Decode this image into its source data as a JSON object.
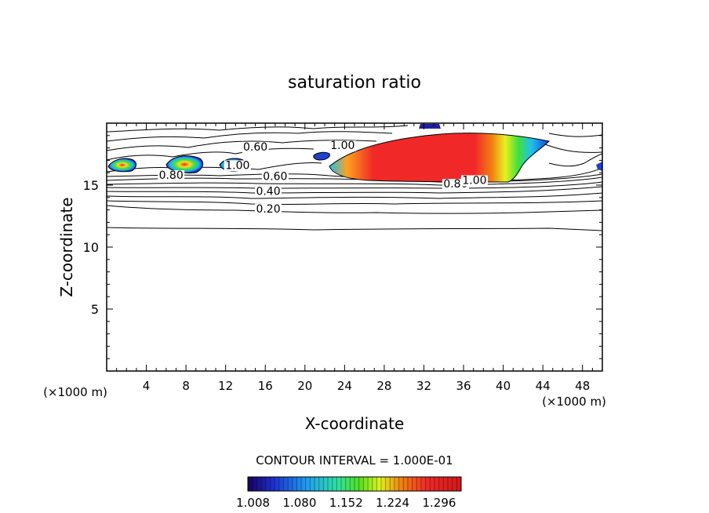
{
  "chart_data": {
    "type": "contour",
    "title": "saturation ratio",
    "xlabel": "X-coordinate",
    "ylabel": "Z-coordinate",
    "x_unit_label": "(×1000 m)",
    "y_unit_label": "(×1000 m)",
    "xlim": [
      0,
      50
    ],
    "ylim": [
      0,
      20
    ],
    "x_ticks": [
      4,
      8,
      12,
      16,
      20,
      24,
      28,
      32,
      36,
      40,
      44,
      48
    ],
    "x_tick_labels": [
      "4",
      "8",
      "12",
      "16",
      "20",
      "24",
      "28",
      "32",
      "36",
      "40",
      "44",
      "48"
    ],
    "y_ticks": [
      5,
      10,
      15
    ],
    "y_tick_labels": [
      "5",
      "10",
      "15"
    ],
    "contour_interval_text": "CONTOUR INTERVAL = 1.000E-01",
    "contour_levels": [
      0.1,
      0.2,
      0.3,
      0.4,
      0.5,
      0.6,
      0.7,
      0.8,
      0.9,
      1.0
    ],
    "contour_labels": [
      {
        "text": "0.20",
        "x": 16.3,
        "z": 12.8
      },
      {
        "text": "0.40",
        "x": 16.3,
        "z": 14.2
      },
      {
        "text": "0.60",
        "x": 17.0,
        "z": 15.4
      },
      {
        "text": "0.80",
        "x": 6.5,
        "z": 15.5
      },
      {
        "text": "1.00",
        "x": 13.2,
        "z": 16.3
      },
      {
        "text": "0.60",
        "x": 15.0,
        "z": 17.8
      },
      {
        "text": "1.00",
        "x": 23.8,
        "z": 17.9
      },
      {
        "text": "0.80",
        "x": 35.2,
        "z": 14.8
      },
      {
        "text": "1.00",
        "x": 37.1,
        "z": 15.1
      }
    ],
    "colorbar": {
      "tick_labels": [
        "1.008",
        "1.080",
        "1.152",
        "1.224",
        "1.296"
      ],
      "min": 1.0,
      "max": 1.33,
      "colors": [
        "#1a0060",
        "#1c30d0",
        "#1ea0f0",
        "#30e0a0",
        "#50e020",
        "#e0f020",
        "#f08010",
        "#f02828",
        "#d01818"
      ]
    },
    "grid": false
  }
}
